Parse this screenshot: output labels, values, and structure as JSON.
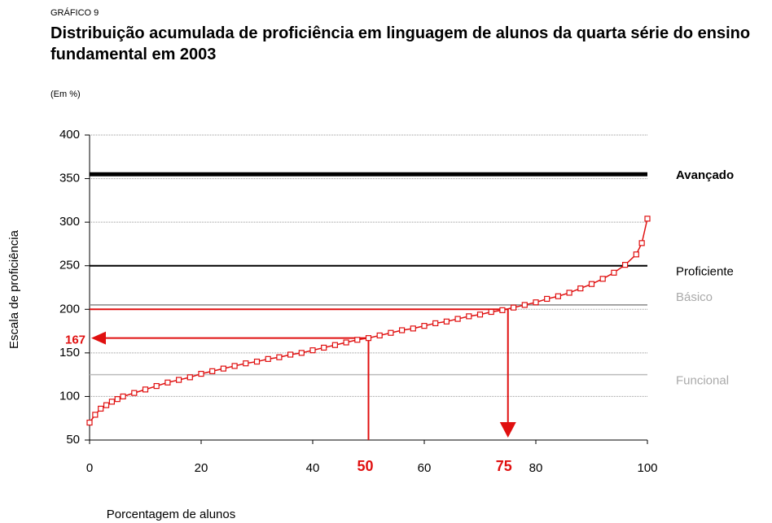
{
  "chart_data": {
    "type": "line",
    "kicker": "GRÁFICO 9",
    "title": "Distribuição acumulada de proficiência em linguagem de alunos da quarta série do ensino fundamental em 2003",
    "subtitle": "(Em %)",
    "xlabel": "Porcentagem de alunos",
    "ylabel": "Escala de proficiência",
    "x": [
      0,
      1,
      2,
      3,
      4,
      5,
      6,
      8,
      10,
      12,
      14,
      16,
      18,
      20,
      22,
      24,
      26,
      28,
      30,
      32,
      34,
      36,
      38,
      40,
      42,
      44,
      46,
      48,
      50,
      52,
      54,
      56,
      58,
      60,
      62,
      64,
      66,
      68,
      70,
      72,
      74,
      76,
      78,
      80,
      82,
      84,
      86,
      88,
      90,
      92,
      94,
      96,
      98,
      99,
      100
    ],
    "series": [
      {
        "color": "#e01010",
        "values": [
          70,
          79,
          86,
          90,
          94,
          97,
          100,
          104,
          108,
          112,
          116,
          119,
          122,
          126,
          129,
          132,
          135,
          138,
          140,
          143,
          145,
          148,
          150,
          153,
          156,
          159,
          162,
          165,
          167,
          170,
          173,
          176,
          178,
          181,
          184,
          186,
          189,
          192,
          194,
          197,
          199,
          202,
          205,
          208,
          212,
          215,
          219,
          224,
          229,
          235,
          242,
          251,
          263,
          276,
          304
        ]
      }
    ],
    "xlim": [
      0,
      100
    ],
    "xticks": [
      0,
      20,
      40,
      60,
      80,
      100
    ],
    "ylim": [
      50,
      400
    ],
    "yticks": [
      50,
      100,
      150,
      200,
      250,
      300,
      350,
      400
    ],
    "grid": true,
    "reference_lines": [
      {
        "value": 355,
        "label": "Avançado",
        "color": "#000000"
      },
      {
        "value": 250,
        "label": "Proficiente",
        "color": "#000000"
      },
      {
        "value": 205,
        "label": "Básico",
        "color": "#888888"
      },
      {
        "value": 125,
        "label": "Funcional",
        "color": "#bbbbbb"
      }
    ],
    "markers": [
      {
        "x": 50,
        "y": 167
      },
      {
        "x": 75,
        "y": 200
      }
    ],
    "marker_color": "#e01010"
  }
}
